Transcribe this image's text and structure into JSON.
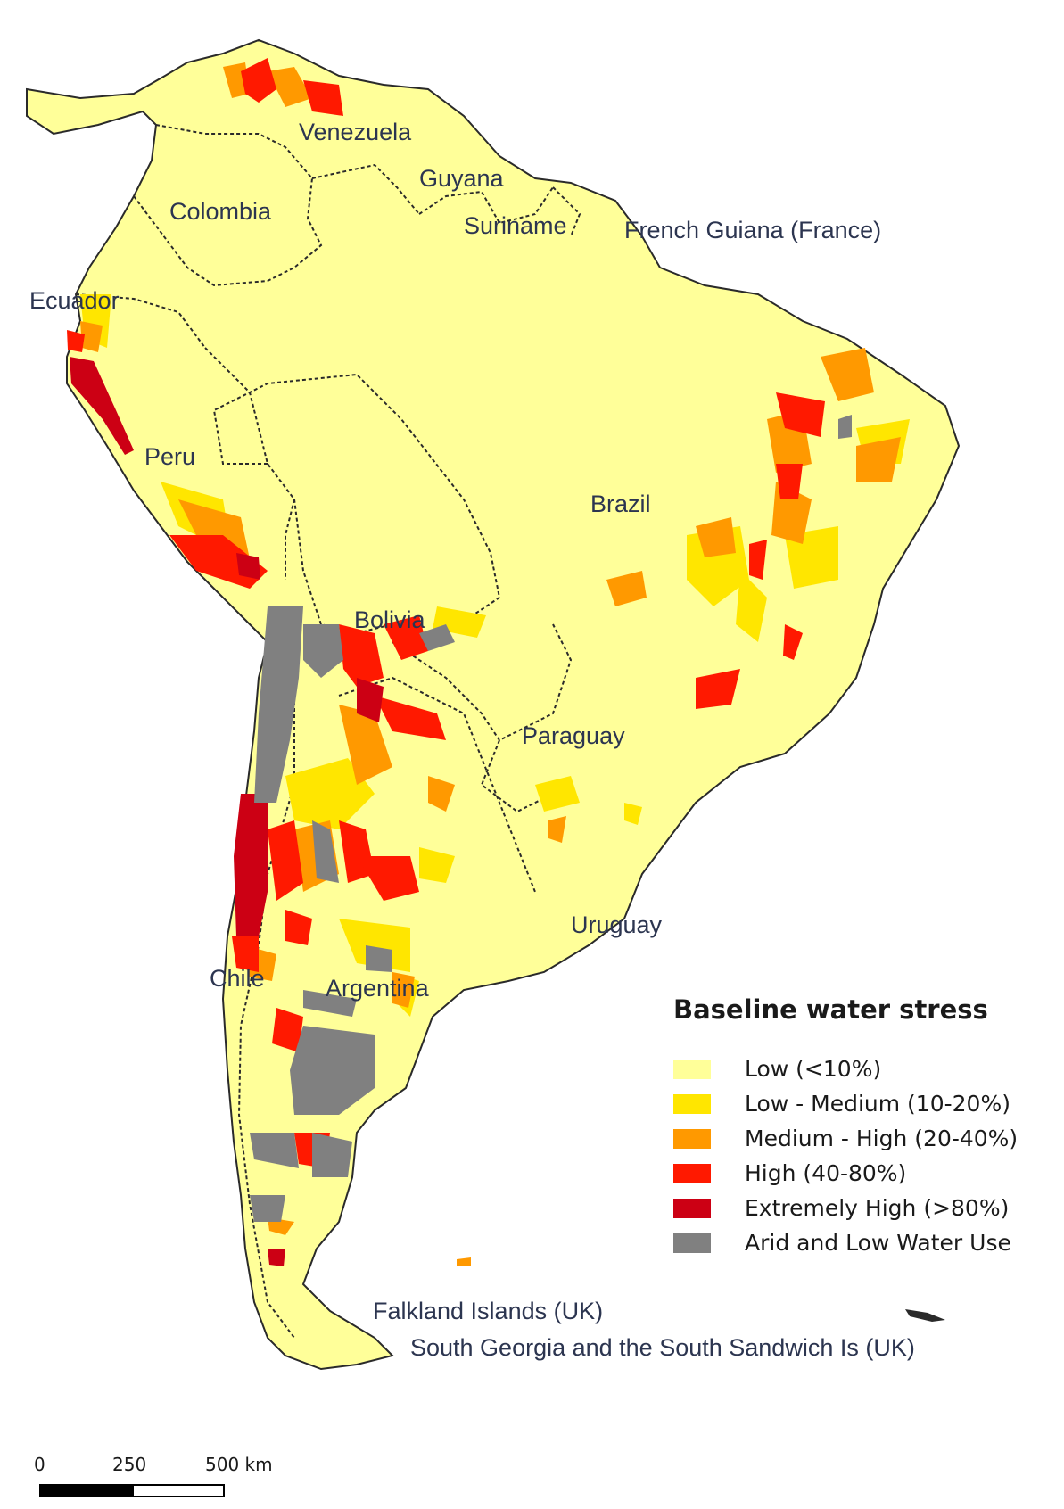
{
  "colors": {
    "ocean": "#ffffff",
    "low": "#ffff99",
    "low_medium": "#ffe600",
    "medium_high": "#ff9900",
    "high": "#ff1900",
    "extremely_high": "#cc0014",
    "arid": "#808080",
    "border": "#2a2a2a"
  },
  "countries": {
    "venezuela": "Venezuela",
    "guyana": "Guyana",
    "colombia": "Colombia",
    "suriname": "Suriname",
    "french_guiana": "French Guiana (France)",
    "ecuador": "Ecuador",
    "peru": "Peru",
    "brazil": "Brazil",
    "bolivia": "Bolivia",
    "paraguay": "Paraguay",
    "uruguay": "Uruguay",
    "chile": "Chile",
    "argentina": "Argentina"
  },
  "territories": {
    "falklands": "Falkland Islands (UK)",
    "south_georgia": "South Georgia and the South Sandwich Is (UK)"
  },
  "legend": {
    "title": "Baseline water stress",
    "items": [
      {
        "label": "Low (<10%)",
        "color": "#ffff99"
      },
      {
        "label": "Low - Medium (10-20%)",
        "color": "#ffe600"
      },
      {
        "label": "Medium - High (20-40%)",
        "color": "#ff9900"
      },
      {
        "label": "High (40-80%)",
        "color": "#ff1900"
      },
      {
        "label": "Extremely High (>80%)",
        "color": "#cc0014"
      },
      {
        "label": "Arid and Low Water Use",
        "color": "#808080"
      }
    ]
  },
  "scale": {
    "ticks": [
      "0",
      "250",
      "500 km"
    ]
  }
}
